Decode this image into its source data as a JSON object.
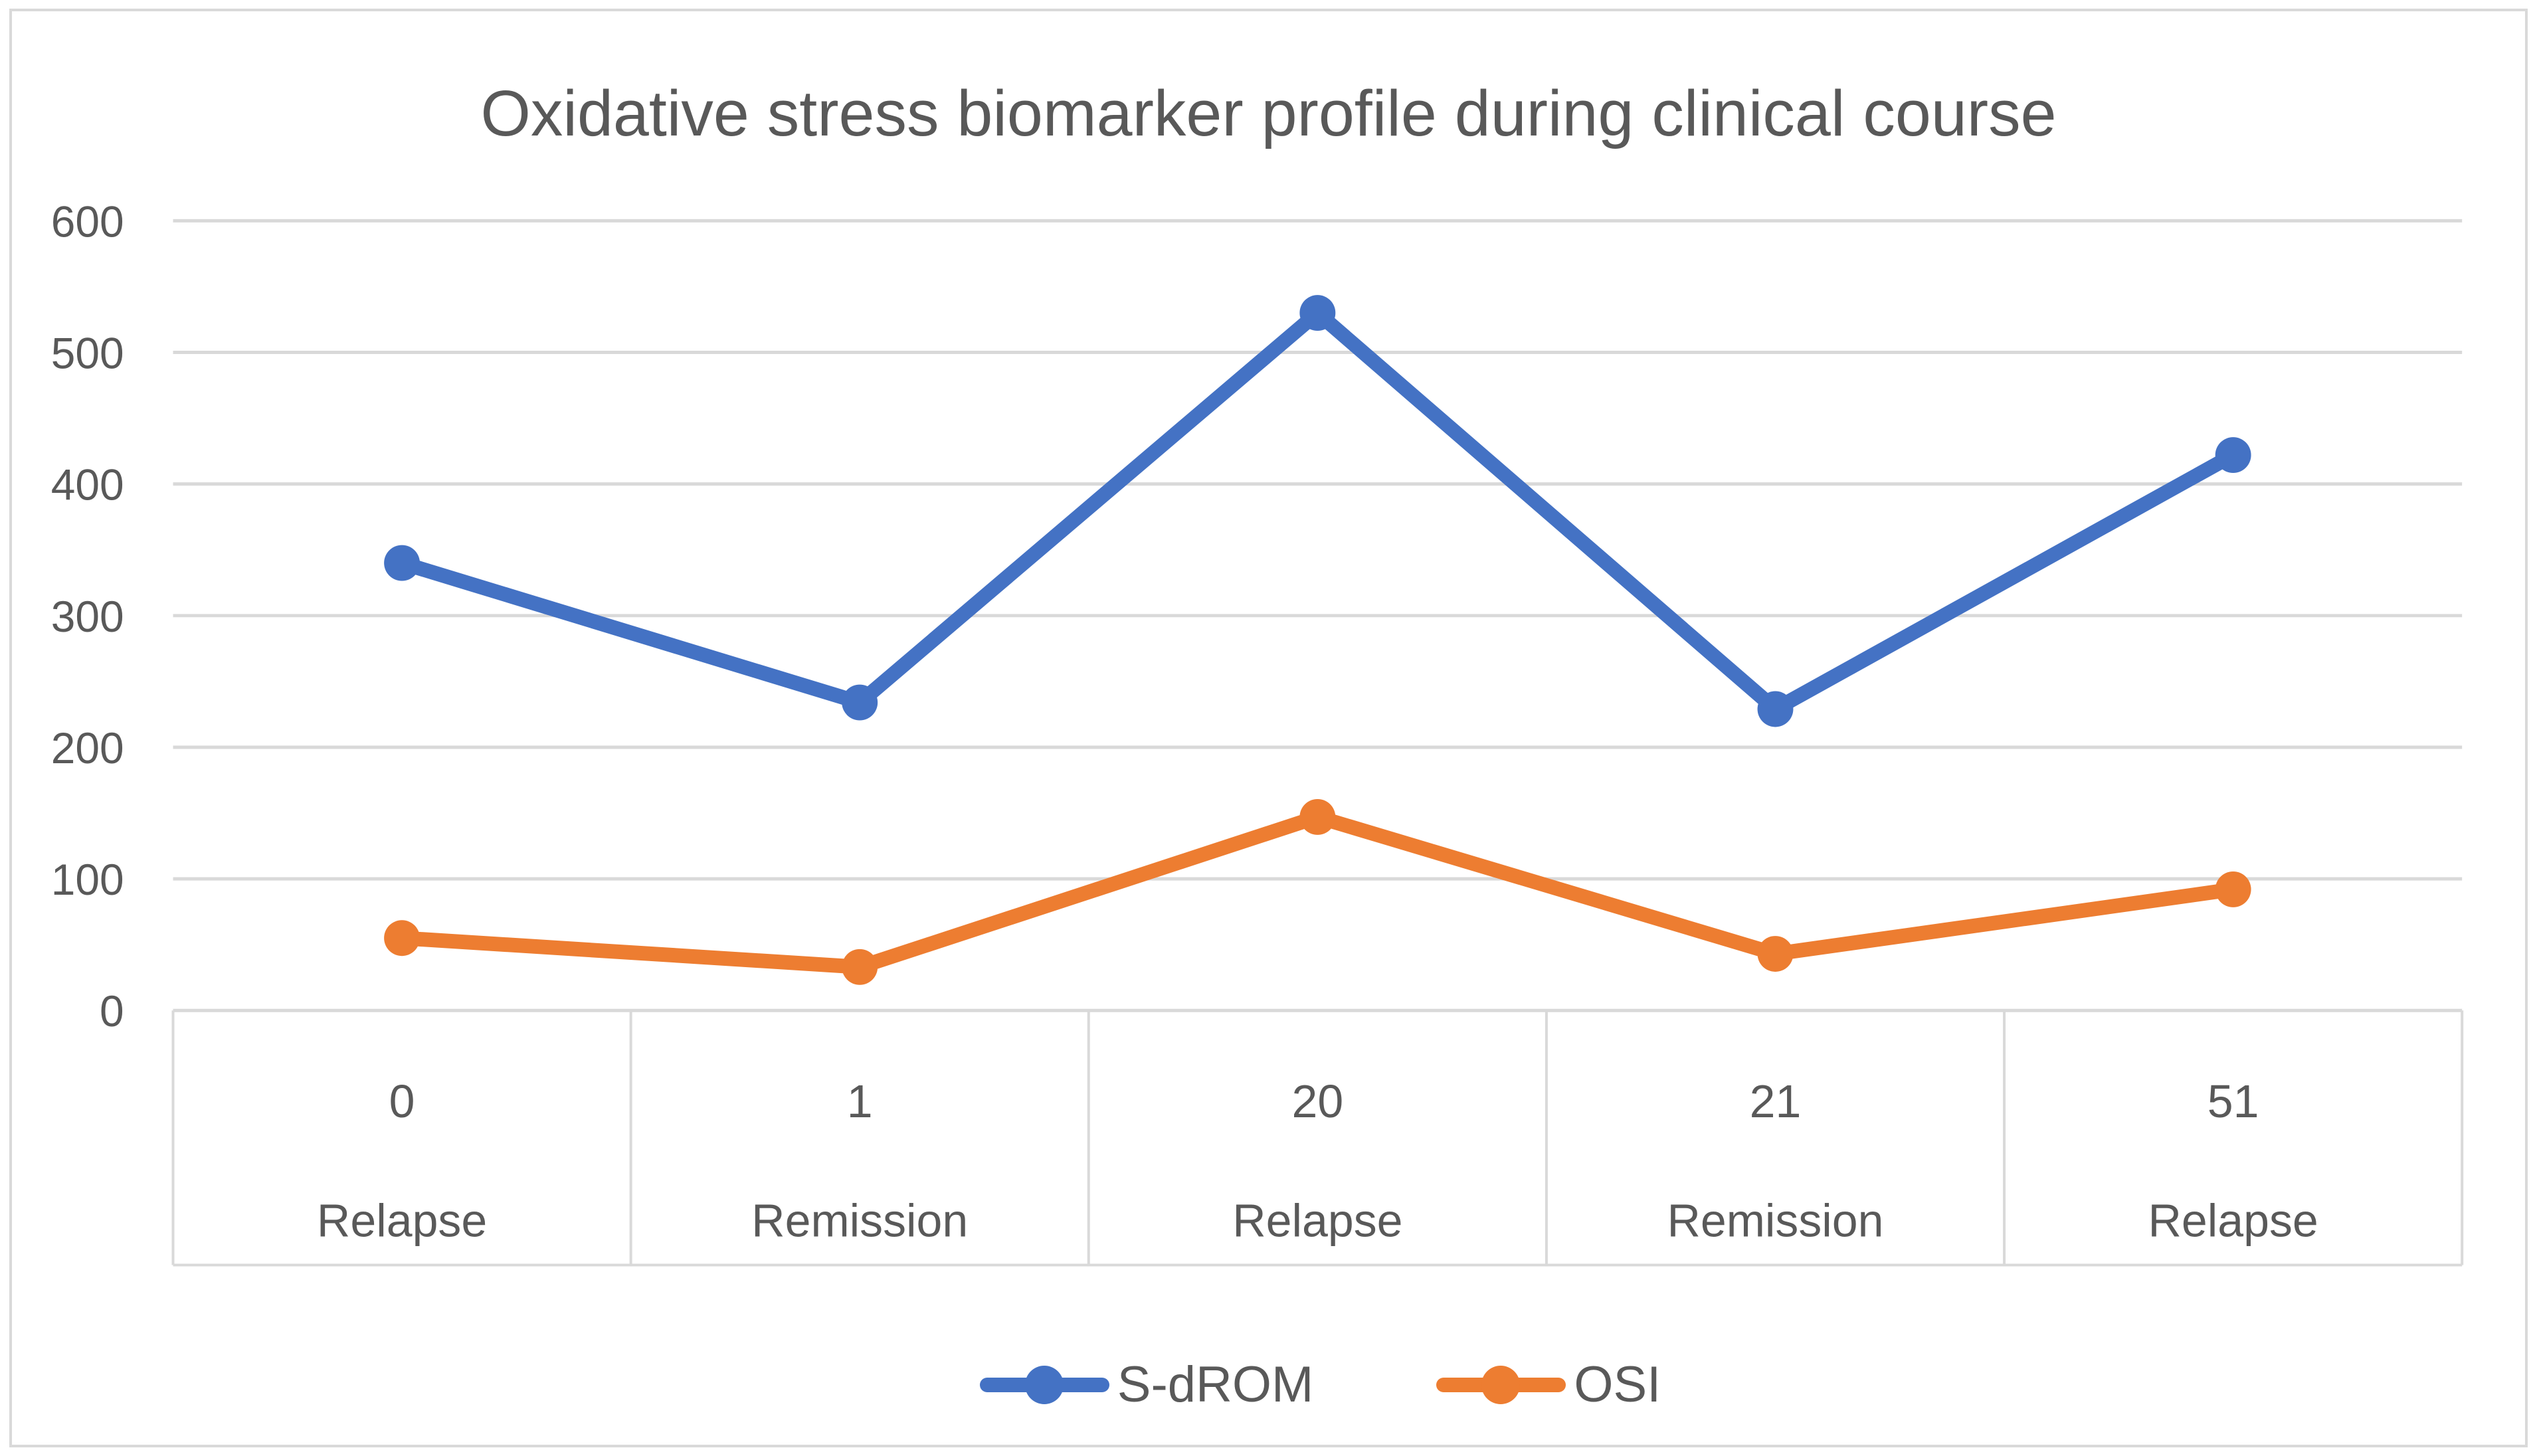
{
  "chart_data": {
    "type": "line",
    "title": "Oxidative stress biomarker profile during clinical course",
    "categories": [
      "0",
      "1",
      "20",
      "21",
      "51"
    ],
    "category_sublabels": [
      "Relapse",
      "Remission",
      "Relapse",
      "Remission",
      "Relapse"
    ],
    "series": [
      {
        "name": "S-dROM",
        "color": "#4472C4",
        "values": [
          340,
          234,
          530,
          229,
          422
        ]
      },
      {
        "name": "OSI",
        "color": "#ED7D31",
        "values": [
          55,
          33,
          147,
          43,
          92
        ]
      }
    ],
    "xlabel": "",
    "ylabel": "",
    "ylim": [
      0,
      600
    ],
    "yticks": [
      0,
      100,
      200,
      300,
      400,
      500,
      600
    ],
    "grid": "horizontal",
    "legend_position": "bottom"
  },
  "colors": {
    "sdrom_blue": "#4472C4",
    "osi_orange": "#ED7D31",
    "gridline": "#D9D9D9",
    "axis_table_line": "#D9D9D9",
    "text_gray": "#595959",
    "figure_border": "#D9D9D9",
    "background": "#FFFFFF"
  }
}
